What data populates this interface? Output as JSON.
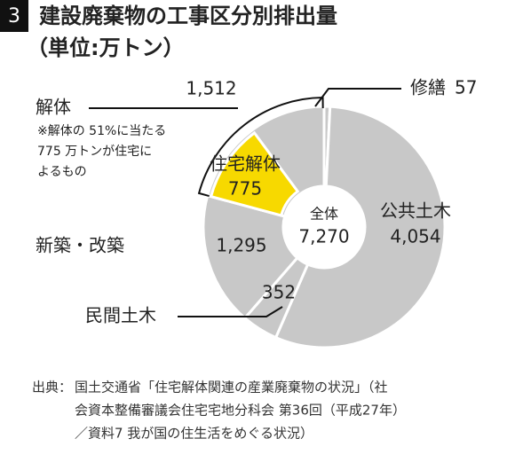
{
  "figure_number": "3",
  "chart_data": {
    "type": "pie",
    "title": "建設廃棄物の工事区分別排出量",
    "subtitle": "（単位:万トン）",
    "categories": [
      "修繕",
      "公共土木",
      "民間土木",
      "新築・改築",
      "解体"
    ],
    "values": [
      57,
      4054,
      352,
      1295,
      1512
    ],
    "value_labels": [
      "57",
      "4,054",
      "352",
      "1,295",
      "1,512"
    ],
    "color": "#c8c8c8",
    "highlight": {
      "name": "住宅解体",
      "parent": "解体",
      "value": 775,
      "value_label": "775",
      "color": "#f7d900"
    },
    "note_lines": [
      "※解体の 51%に当たる",
      "775 万トンが住宅に",
      "よるもの"
    ],
    "center_label": "全体",
    "total": 7270,
    "total_label": "7,270"
  },
  "source": {
    "label": "出典：",
    "lines": [
      "国土交通省「住宅解体関連の産業廃棄物の状況」（社",
      "会資本整備審議会住宅宅地分科会 第36回（平成27年）",
      "／資料7 我が国の住生活をめぐる状況）"
    ]
  }
}
